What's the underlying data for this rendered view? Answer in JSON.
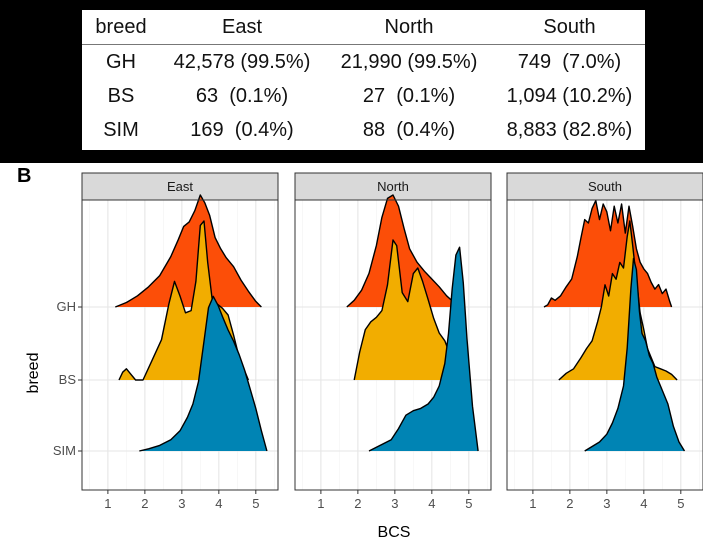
{
  "table": {
    "headers": [
      "breed",
      "East",
      "North",
      "South"
    ],
    "rows": [
      {
        "breed": "GH",
        "cells": [
          "42,578 (99.5%)",
          "21,990 (99.5%)",
          "749  (7.0%)"
        ]
      },
      {
        "breed": "BS",
        "cells": [
          "63  (0.1%)",
          "27  (0.1%)",
          "1,094 (10.2%)"
        ]
      },
      {
        "breed": "SIM",
        "cells": [
          "169  (0.4%)",
          "88  (0.4%)",
          "8,883 (82.8%)"
        ]
      }
    ]
  },
  "panel_label": "B",
  "chart_data": {
    "type": "ridgeline-density",
    "facets": [
      "East",
      "North",
      "South"
    ],
    "categories": [
      "GH",
      "BS",
      "SIM"
    ],
    "xlabel": "BCS",
    "ylabel": "breed",
    "xlim": [
      0.3,
      5.6
    ],
    "xticks": [
      1,
      2,
      3,
      4,
      5
    ],
    "grid": true,
    "colors": {
      "GH": "#FC4E08",
      "BS": "#F2AD00",
      "SIM": "#0084B4"
    },
    "series": [
      {
        "facet": "East",
        "category": "GH",
        "x": [
          1.2,
          1.5,
          1.8,
          2.1,
          2.4,
          2.7,
          2.9,
          3.05,
          3.2,
          3.35,
          3.5,
          3.62,
          3.75,
          3.9,
          4.05,
          4.2,
          4.4,
          4.6,
          4.8,
          5.0,
          5.15
        ],
        "y": [
          0,
          0.04,
          0.1,
          0.18,
          0.28,
          0.45,
          0.6,
          0.72,
          0.76,
          0.86,
          1.0,
          0.93,
          0.82,
          0.62,
          0.52,
          0.44,
          0.36,
          0.24,
          0.14,
          0.05,
          0
        ]
      },
      {
        "facet": "East",
        "category": "BS",
        "x": [
          1.3,
          1.4,
          1.5,
          1.6,
          1.75,
          1.95,
          2.2,
          2.45,
          2.65,
          2.8,
          2.95,
          3.1,
          3.25,
          3.38,
          3.5,
          3.6,
          3.7,
          3.82,
          3.95,
          4.1,
          4.25,
          4.4,
          4.55,
          4.7,
          4.8
        ],
        "y": [
          0,
          0.07,
          0.1,
          0.06,
          0,
          0,
          0.18,
          0.36,
          0.68,
          0.88,
          0.75,
          0.6,
          0.62,
          0.88,
          1.38,
          1.42,
          1.05,
          0.72,
          0.68,
          0.64,
          0.58,
          0.4,
          0.2,
          0.08,
          0
        ]
      },
      {
        "facet": "East",
        "category": "SIM",
        "x": [
          1.85,
          2.1,
          2.4,
          2.7,
          2.95,
          3.15,
          3.3,
          3.45,
          3.6,
          3.72,
          3.85,
          3.98,
          4.1,
          4.25,
          4.4,
          4.55,
          4.7,
          4.85,
          5.0,
          5.15,
          5.3
        ],
        "y": [
          0,
          0.02,
          0.05,
          0.1,
          0.18,
          0.3,
          0.42,
          0.62,
          0.98,
          1.28,
          1.38,
          1.3,
          1.2,
          1.08,
          0.98,
          0.86,
          0.72,
          0.55,
          0.38,
          0.18,
          0
        ]
      },
      {
        "facet": "North",
        "category": "GH",
        "x": [
          1.7,
          1.9,
          2.1,
          2.3,
          2.5,
          2.65,
          2.8,
          2.95,
          3.1,
          3.25,
          3.4,
          3.6,
          3.8,
          4.0,
          4.2,
          4.4,
          4.6,
          4.75
        ],
        "y": [
          0,
          0.06,
          0.15,
          0.3,
          0.55,
          0.8,
          0.97,
          1.0,
          0.9,
          0.7,
          0.52,
          0.4,
          0.32,
          0.25,
          0.18,
          0.1,
          0.04,
          0
        ]
      },
      {
        "facet": "North",
        "category": "BS",
        "x": [
          1.9,
          2.05,
          2.2,
          2.35,
          2.5,
          2.65,
          2.8,
          2.95,
          3.05,
          3.2,
          3.35,
          3.5,
          3.62,
          3.75,
          3.9,
          4.05,
          4.2,
          4.35,
          4.5,
          4.65
        ],
        "y": [
          0,
          0.25,
          0.45,
          0.52,
          0.56,
          0.62,
          0.85,
          1.25,
          1.2,
          0.78,
          0.7,
          0.95,
          1.0,
          0.88,
          0.72,
          0.55,
          0.42,
          0.35,
          0.22,
          0
        ]
      },
      {
        "facet": "North",
        "category": "SIM",
        "x": [
          2.3,
          2.6,
          2.9,
          3.1,
          3.3,
          3.5,
          3.7,
          3.9,
          4.05,
          4.2,
          4.35,
          4.45,
          4.55,
          4.65,
          4.75,
          4.85,
          4.95,
          5.1,
          5.25
        ],
        "y": [
          0,
          0.05,
          0.1,
          0.2,
          0.32,
          0.36,
          0.38,
          0.42,
          0.48,
          0.58,
          0.78,
          1.05,
          1.45,
          1.75,
          1.82,
          1.5,
          1.0,
          0.4,
          0
        ]
      },
      {
        "facet": "South",
        "category": "GH",
        "x": [
          1.3,
          1.4,
          1.5,
          1.6,
          1.75,
          1.9,
          2.05,
          2.2,
          2.3,
          2.4,
          2.5,
          2.6,
          2.7,
          2.8,
          2.9,
          3.0,
          3.1,
          3.2,
          3.3,
          3.4,
          3.5,
          3.6,
          3.7,
          3.8,
          3.9,
          4.0,
          4.1,
          4.2,
          4.3,
          4.4,
          4.5,
          4.6,
          4.7,
          4.75
        ],
        "y": [
          0,
          0.02,
          0.08,
          0.06,
          0.1,
          0.18,
          0.25,
          0.45,
          0.62,
          0.78,
          0.75,
          0.88,
          0.95,
          0.78,
          0.92,
          0.85,
          0.68,
          0.9,
          0.75,
          0.92,
          0.66,
          0.9,
          0.72,
          0.52,
          0.4,
          0.34,
          0.3,
          0.22,
          0.16,
          0.2,
          0.12,
          0.16,
          0.05,
          0
        ]
      },
      {
        "facet": "South",
        "category": "BS",
        "x": [
          1.7,
          1.9,
          2.1,
          2.3,
          2.45,
          2.6,
          2.75,
          2.85,
          2.95,
          3.05,
          3.15,
          3.25,
          3.35,
          3.45,
          3.55,
          3.62,
          3.7,
          3.8,
          3.9,
          4.0,
          4.1,
          4.2,
          4.3,
          4.45,
          4.6,
          4.75,
          4.9
        ],
        "y": [
          0,
          0.06,
          0.1,
          0.2,
          0.28,
          0.35,
          0.52,
          0.65,
          0.85,
          0.75,
          0.95,
          0.9,
          1.05,
          1.0,
          1.28,
          1.42,
          1.2,
          0.9,
          0.6,
          0.45,
          0.28,
          0.2,
          0.12,
          0.1,
          0.08,
          0.05,
          0
        ]
      },
      {
        "facet": "South",
        "category": "SIM",
        "x": [
          2.4,
          2.6,
          2.8,
          3.0,
          3.15,
          3.3,
          3.45,
          3.55,
          3.65,
          3.72,
          3.8,
          3.88,
          3.95,
          4.05,
          4.15,
          4.25,
          4.35,
          4.45,
          4.55,
          4.65,
          4.8,
          4.95,
          5.1
        ],
        "y": [
          0,
          0.04,
          0.08,
          0.15,
          0.25,
          0.38,
          0.58,
          0.92,
          1.45,
          1.72,
          1.62,
          1.25,
          1.05,
          0.98,
          0.85,
          0.78,
          0.66,
          0.58,
          0.5,
          0.42,
          0.22,
          0.08,
          0
        ]
      }
    ]
  }
}
